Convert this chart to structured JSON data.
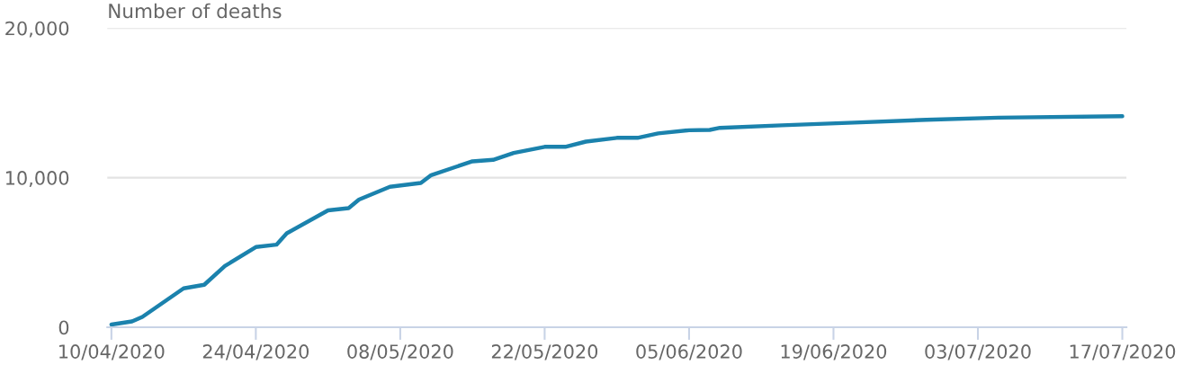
{
  "chart_data": {
    "type": "line",
    "ylabel": "Number of deaths",
    "x": [
      "2020-04-10",
      "2020-04-12",
      "2020-04-13",
      "2020-04-17",
      "2020-04-19",
      "2020-04-21",
      "2020-04-24",
      "2020-04-26",
      "2020-04-27",
      "2020-05-01",
      "2020-05-03",
      "2020-05-04",
      "2020-05-07",
      "2020-05-10",
      "2020-05-11",
      "2020-05-15",
      "2020-05-17",
      "2020-05-19",
      "2020-05-22",
      "2020-05-24",
      "2020-05-26",
      "2020-05-29",
      "2020-05-31",
      "2020-06-02",
      "2020-06-05",
      "2020-06-07",
      "2020-06-08",
      "2020-06-14",
      "2020-06-21",
      "2020-06-28",
      "2020-07-05",
      "2020-07-17"
    ],
    "series": [
      {
        "color": "#1b82ad",
        "values": [
          180,
          390,
          690,
          2600,
          2840,
          4090,
          5360,
          5520,
          6280,
          7810,
          7960,
          8530,
          9390,
          9650,
          10170,
          11090,
          11190,
          11650,
          12060,
          12060,
          12410,
          12660,
          12660,
          12960,
          13170,
          13190,
          13330,
          13500,
          13680,
          13870,
          14010,
          14110
        ]
      }
    ],
    "xlim": [
      "2020-04-10",
      "2020-07-17"
    ],
    "xticks": [
      {
        "value": "2020-04-10",
        "label": "10/04/2020"
      },
      {
        "value": "2020-04-24",
        "label": "24/04/2020"
      },
      {
        "value": "2020-05-08",
        "label": "08/05/2020"
      },
      {
        "value": "2020-05-22",
        "label": "22/05/2020"
      },
      {
        "value": "2020-06-05",
        "label": "05/06/2020"
      },
      {
        "value": "2020-06-19",
        "label": "19/06/2020"
      },
      {
        "value": "2020-07-03",
        "label": "03/07/2020"
      },
      {
        "value": "2020-07-17",
        "label": "17/07/2020"
      }
    ],
    "ylim": [
      0,
      20000
    ],
    "yticks": [
      {
        "value": 0,
        "label": "0"
      },
      {
        "value": 10000,
        "label": "10,000"
      },
      {
        "value": 20000,
        "label": "20,000"
      }
    ],
    "grid": "y",
    "marker": "none",
    "line_style": "solid",
    "legend": false
  }
}
